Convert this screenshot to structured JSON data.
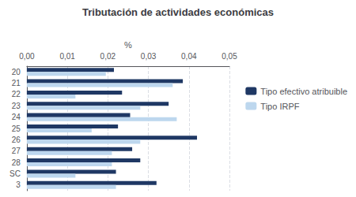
{
  "chart_data": {
    "type": "bar",
    "orientation": "horizontal",
    "title": "Tributación de actividades económicas",
    "xlabel": "%",
    "categories": [
      "20",
      "21",
      "22",
      "23",
      "24",
      "25",
      "26",
      "27",
      "28",
      "SC",
      "3"
    ],
    "series": [
      {
        "name": "Tipo efectivo atribuible",
        "color": "#1F3864",
        "values": [
          0.0215,
          0.0385,
          0.0235,
          0.035,
          0.0255,
          0.0225,
          0.042,
          0.026,
          0.028,
          0.022,
          0.032
        ]
      },
      {
        "name": "Tipo IRPF",
        "color": "#BDD7EE",
        "values": [
          0.0195,
          0.036,
          0.012,
          0.028,
          0.037,
          0.016,
          0.028,
          0.021,
          0.021,
          0.012,
          0.022
        ]
      }
    ],
    "xlim": [
      0,
      0.05
    ],
    "xticks": [
      {
        "value": 0.0,
        "label": "0,00"
      },
      {
        "value": 0.01,
        "label": "0,01"
      },
      {
        "value": 0.02,
        "label": "0,02"
      },
      {
        "value": 0.03,
        "label": "0,03"
      },
      {
        "value": 0.04,
        "label": "0,04"
      },
      {
        "value": 0.05,
        "label": "0,05"
      }
    ],
    "grid": true,
    "legend": "right"
  }
}
